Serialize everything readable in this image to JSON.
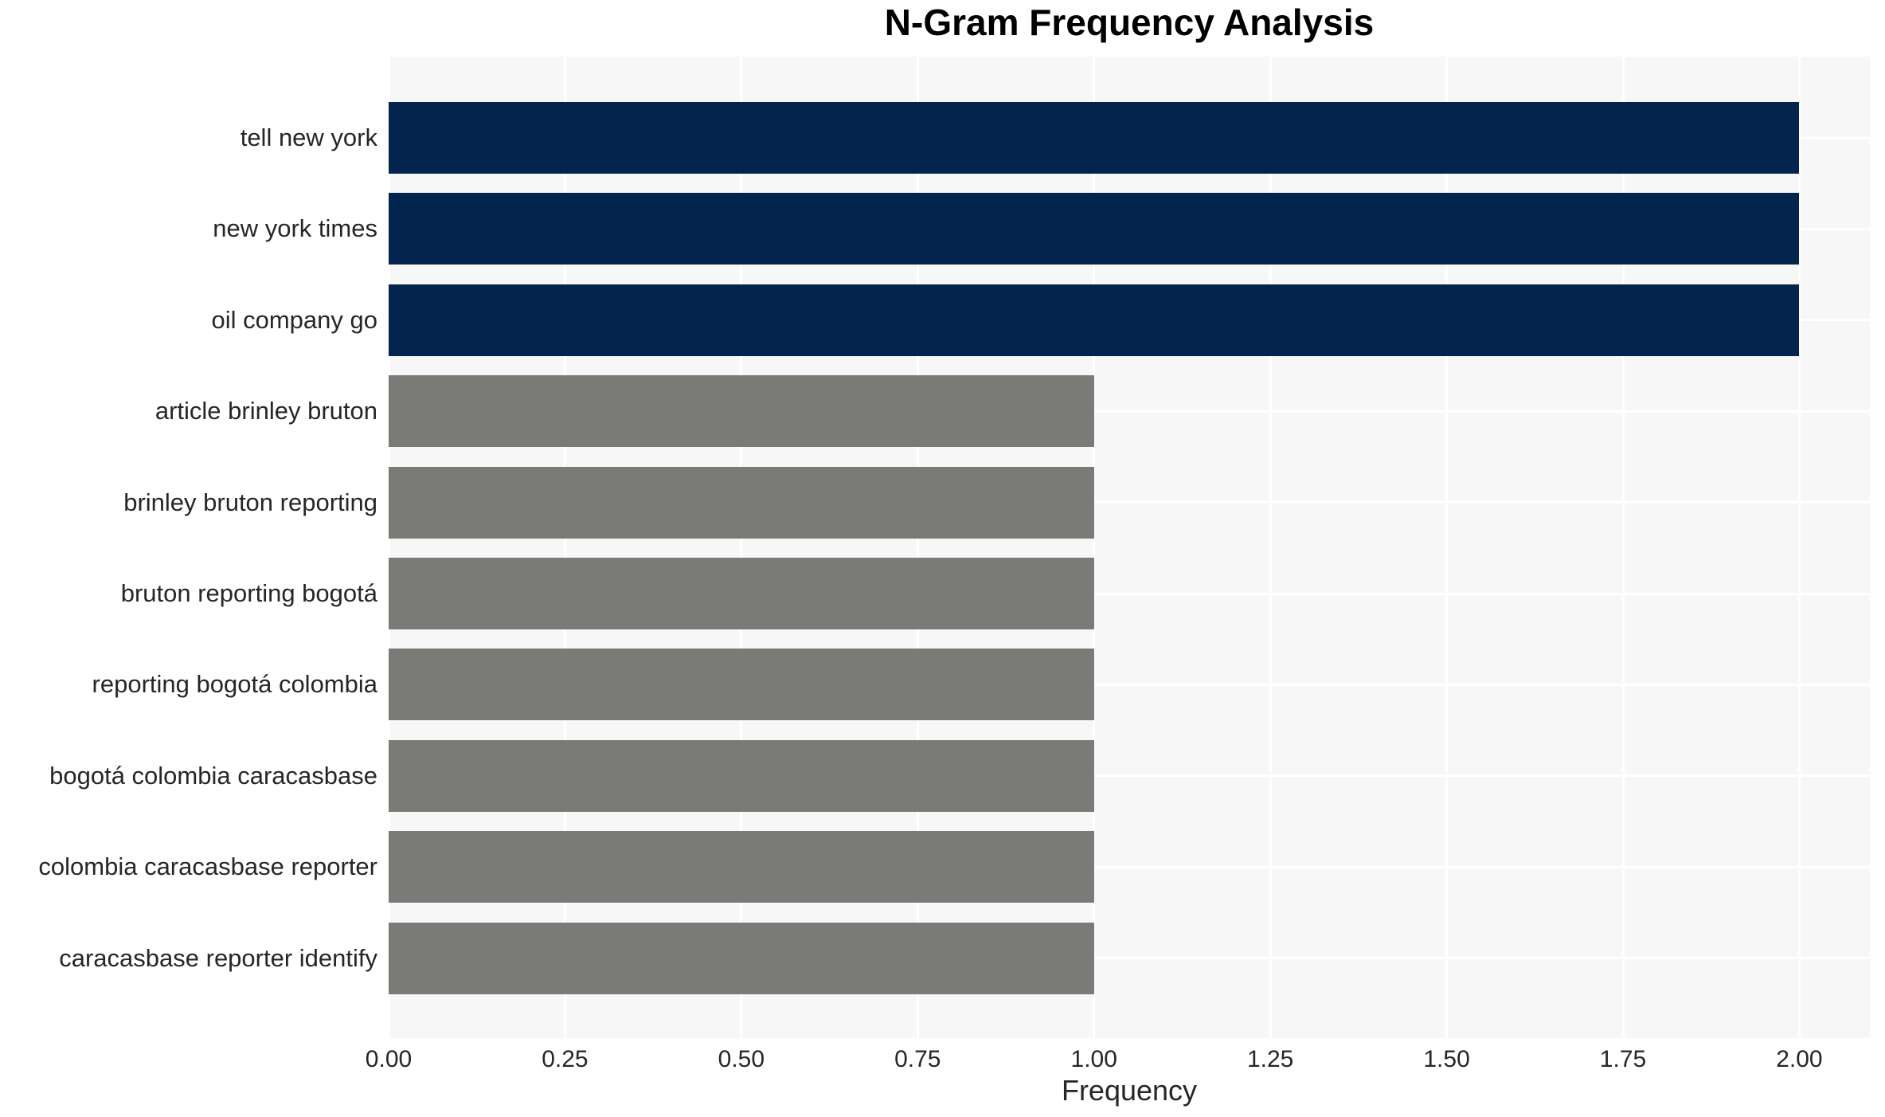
{
  "chart_data": {
    "type": "bar",
    "orientation": "horizontal",
    "title": "N-Gram Frequency Analysis",
    "xlabel": "Frequency",
    "ylabel": "",
    "categories": [
      "tell new york",
      "new york times",
      "oil company go",
      "article brinley bruton",
      "brinley bruton reporting",
      "bruton reporting bogotá",
      "reporting bogotá colombia",
      "bogotá colombia caracasbase",
      "colombia caracasbase reporter",
      "caracasbase reporter identify"
    ],
    "values": [
      2.0,
      2.0,
      2.0,
      1.0,
      1.0,
      1.0,
      1.0,
      1.0,
      1.0,
      1.0
    ],
    "bar_colors": [
      "#03244c",
      "#03244c",
      "#03244c",
      "#7a7a77",
      "#7a7a77",
      "#7a7a77",
      "#7a7a77",
      "#7a7a77",
      "#7a7a77",
      "#7a7a77"
    ],
    "xlim": [
      0,
      2.1
    ],
    "xtick_values": [
      0,
      0.25,
      0.5,
      0.75,
      1.0,
      1.25,
      1.5,
      1.75,
      2.0
    ],
    "xtick_labels": [
      "0.00",
      "0.25",
      "0.50",
      "0.75",
      "1.00",
      "1.25",
      "1.50",
      "1.75",
      "2.00"
    ],
    "grid": true,
    "legend": null,
    "colors": {
      "high_frequency_bar": "#03244c",
      "low_frequency_bar": "#7a7a77",
      "plot_background": "#f7f7f7",
      "grid_line": "#ffffff",
      "tick_text": "#262626",
      "title_text": "#000000"
    }
  }
}
